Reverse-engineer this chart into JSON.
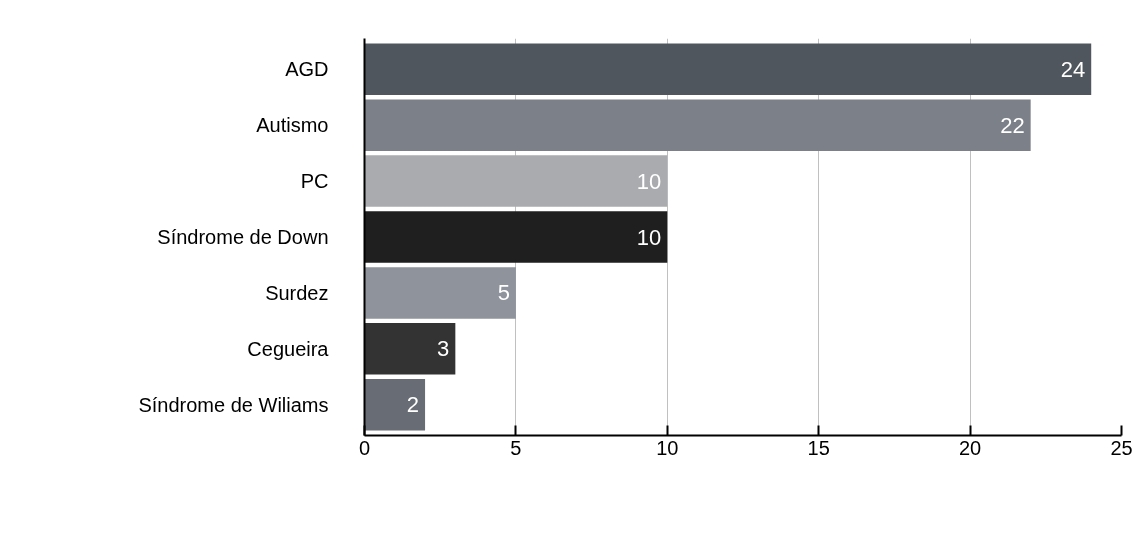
{
  "chart_data": {
    "type": "bar",
    "orientation": "horizontal",
    "categories": [
      "AGD",
      "Autismo",
      "PC",
      "Síndrome de Down",
      "Surdez",
      "Cegueira",
      "Síndrome de Wiliams"
    ],
    "values": [
      24,
      22,
      10,
      10,
      5,
      3,
      2
    ],
    "colors": [
      "#50565e",
      "#7b8089",
      "#a9abae",
      "#1f1f1f",
      "#8e939c",
      "#333333",
      "#686d75"
    ],
    "xlim": [
      0,
      25
    ],
    "xticks": [
      0,
      5,
      10,
      15,
      20,
      25
    ],
    "grid": "x",
    "data_labels": true
  }
}
